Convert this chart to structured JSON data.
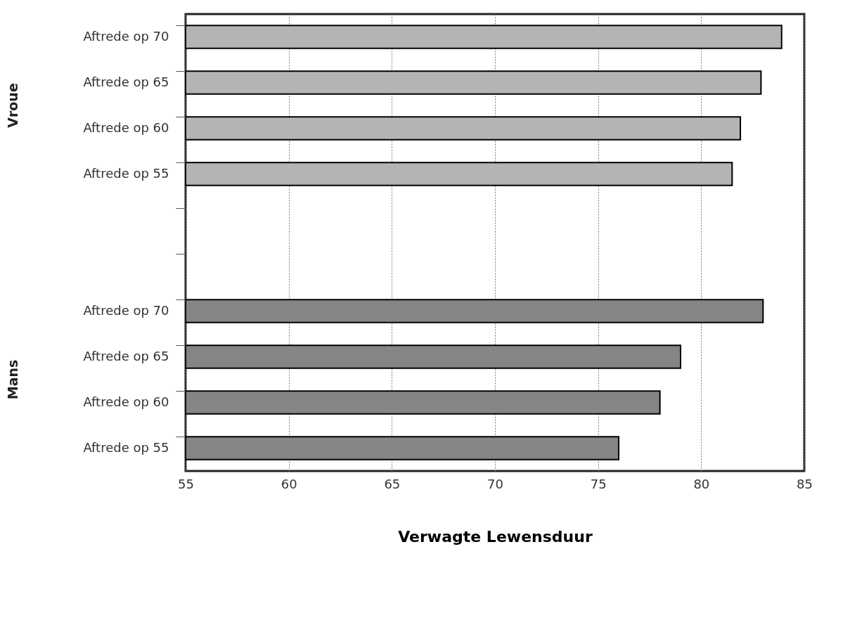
{
  "chart_data": {
    "type": "bar",
    "orientation": "horizontal",
    "categories": [
      "Aftrede op 70",
      "Aftrede op 65",
      "Aftrede op 60",
      "Aftrede op 55",
      null,
      null,
      "Aftrede op 70",
      "Aftrede op 65",
      "Aftrede op 60",
      "Aftrede op 55"
    ],
    "values": [
      83.9,
      82.9,
      81.9,
      81.5,
      null,
      null,
      83.0,
      79.0,
      78.0,
      76.0
    ],
    "colors": [
      "#b4b4b4",
      "#b4b4b4",
      "#b4b4b4",
      "#b4b4b4",
      null,
      null,
      "#858585",
      "#858585",
      "#858585",
      "#858585"
    ],
    "xlabel": "Verwagte Lewensduur",
    "annotations": [
      "Vroue",
      "Mans"
    ],
    "xlim": [
      55,
      85
    ],
    "xticks": [
      55,
      60,
      65,
      70,
      75,
      80,
      85
    ],
    "grid": "x"
  }
}
